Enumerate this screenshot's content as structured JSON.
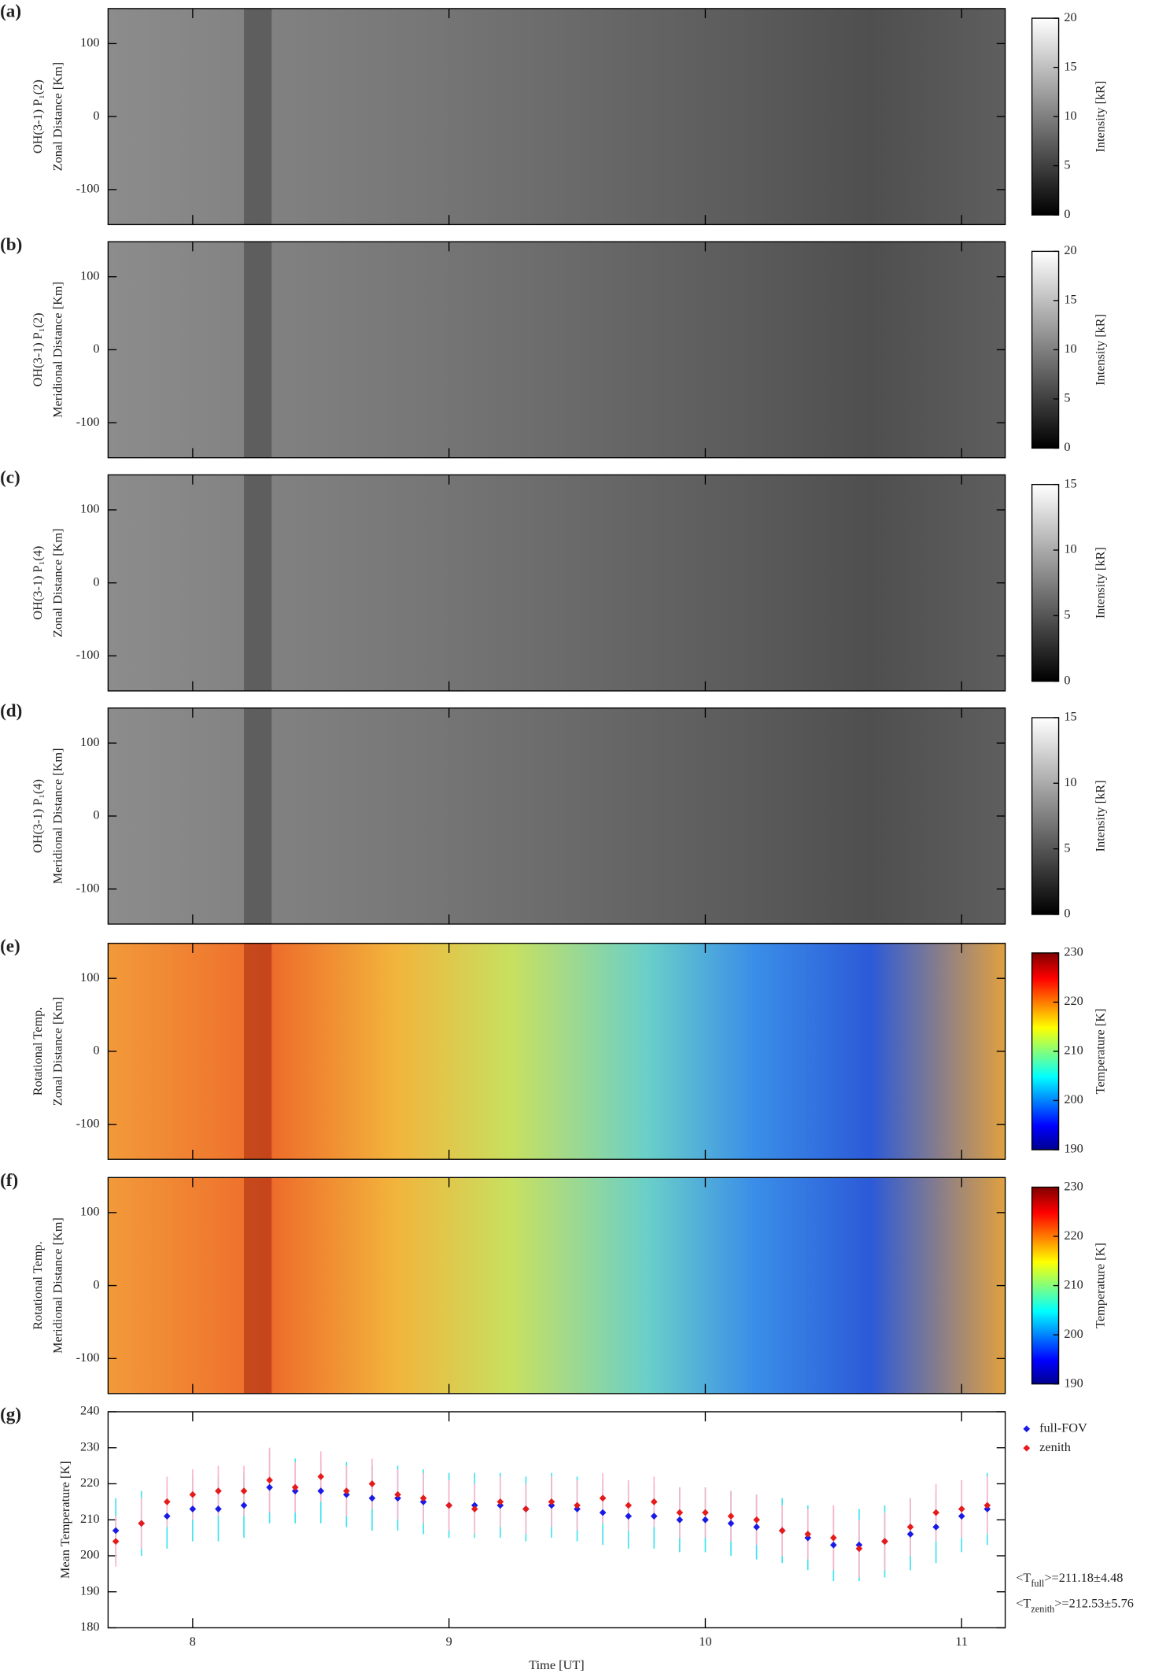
{
  "chart_data": [
    {
      "type": "keogram",
      "panel_label": "(a)",
      "ylabel": [
        "OH(3-1) P₁(2)",
        "Zonal Distance [Km]"
      ],
      "xlim": [
        7.67,
        11.17
      ],
      "xticks": [
        8,
        9,
        10,
        11
      ],
      "ylim": [
        -148,
        148
      ],
      "yticks": [
        -100,
        0,
        100
      ],
      "colormap": "gray",
      "colorbar": {
        "label": "Intensity [kR]",
        "lim": [
          0,
          20
        ],
        "ticks": [
          0,
          5,
          10,
          15,
          20
        ]
      }
    },
    {
      "type": "keogram",
      "panel_label": "(b)",
      "ylabel": [
        "OH(3-1) P₁(2)",
        "Meridional Distance [Km]"
      ],
      "xlim": [
        7.67,
        11.17
      ],
      "xticks": [
        8,
        9,
        10,
        11
      ],
      "ylim": [
        -148,
        148
      ],
      "yticks": [
        -100,
        0,
        100
      ],
      "colormap": "gray",
      "colorbar": {
        "label": "Intensity [kR]",
        "lim": [
          0,
          20
        ],
        "ticks": [
          0,
          5,
          10,
          15,
          20
        ]
      }
    },
    {
      "type": "keogram",
      "panel_label": "(c)",
      "ylabel": [
        "OH(3-1) P₁(4)",
        "Zonal Distance [Km]"
      ],
      "xlim": [
        7.67,
        11.17
      ],
      "xticks": [
        8,
        9,
        10,
        11
      ],
      "ylim": [
        -148,
        148
      ],
      "yticks": [
        -100,
        0,
        100
      ],
      "colormap": "gray",
      "colorbar": {
        "label": "Intensity [kR]",
        "lim": [
          0,
          15
        ],
        "ticks": [
          0,
          5,
          10,
          15
        ]
      }
    },
    {
      "type": "keogram",
      "panel_label": "(d)",
      "ylabel": [
        "OH(3-1) P₁(4)",
        "Meridional Distance [Km]"
      ],
      "xlim": [
        7.67,
        11.17
      ],
      "xticks": [
        8,
        9,
        10,
        11
      ],
      "ylim": [
        -148,
        148
      ],
      "yticks": [
        -100,
        0,
        100
      ],
      "colormap": "gray",
      "colorbar": {
        "label": "Intensity [kR]",
        "lim": [
          0,
          15
        ],
        "ticks": [
          0,
          5,
          10,
          15
        ]
      }
    },
    {
      "type": "keogram",
      "panel_label": "(e)",
      "ylabel": [
        "Rotational Temp.",
        "Zonal Distance [Km]"
      ],
      "xlim": [
        7.67,
        11.17
      ],
      "xticks": [
        8,
        9,
        10,
        11
      ],
      "ylim": [
        -148,
        148
      ],
      "yticks": [
        -100,
        0,
        100
      ],
      "colormap": "jet",
      "colorbar": {
        "label": "Temperature [K]",
        "lim": [
          190,
          230
        ],
        "ticks": [
          190,
          200,
          210,
          220,
          230
        ]
      }
    },
    {
      "type": "keogram",
      "panel_label": "(f)",
      "ylabel": [
        "Rotational Temp.",
        "Meridional Distance [Km]"
      ],
      "xlim": [
        7.67,
        11.17
      ],
      "xticks": [
        8,
        9,
        10,
        11
      ],
      "ylim": [
        -148,
        148
      ],
      "yticks": [
        -100,
        0,
        100
      ],
      "colormap": "jet",
      "colorbar": {
        "label": "Temperature [K]",
        "lim": [
          190,
          230
        ],
        "ticks": [
          190,
          200,
          210,
          220,
          230
        ]
      }
    },
    {
      "type": "scatter",
      "panel_label": "(g)",
      "ylabel": [
        "Mean Temperature [K]"
      ],
      "xlabel": "Time [UT]",
      "xlim": [
        7.67,
        11.17
      ],
      "xticks": [
        8,
        9,
        10,
        11
      ],
      "ylim": [
        180,
        240
      ],
      "yticks": [
        180,
        190,
        200,
        210,
        220,
        230,
        240
      ],
      "legend": "right",
      "x": [
        7.7,
        7.8,
        7.9,
        8.0,
        8.1,
        8.2,
        8.3,
        8.4,
        8.5,
        8.6,
        8.7,
        8.8,
        8.9,
        9.0,
        9.1,
        9.2,
        9.3,
        9.4,
        9.5,
        9.6,
        9.7,
        9.8,
        9.9,
        10.0,
        10.1,
        10.2,
        10.3,
        10.4,
        10.5,
        10.6,
        10.7,
        10.8,
        10.9,
        11.0,
        11.1
      ],
      "series": [
        {
          "name": "full-FOV",
          "color": "#1a1ae6",
          "error_color": "#3fe3f0",
          "values": [
            207,
            209,
            211,
            213,
            213,
            214,
            219,
            218,
            218,
            217,
            216,
            216,
            215,
            214,
            214,
            214,
            213,
            214,
            213,
            212,
            211,
            211,
            210,
            210,
            209,
            208,
            207,
            205,
            203,
            203,
            204,
            206,
            208,
            211,
            213
          ],
          "errors": [
            9,
            9,
            9,
            9,
            9,
            9,
            10,
            9,
            9,
            9,
            9,
            9,
            9,
            9,
            9,
            9,
            9,
            9,
            9,
            9,
            9,
            9,
            9,
            9,
            9,
            9,
            9,
            9,
            10,
            10,
            10,
            10,
            10,
            10,
            10
          ]
        },
        {
          "name": "zenith",
          "color": "#e61a1a",
          "error_color": "#ffb3c9",
          "values": [
            204,
            209,
            215,
            217,
            218,
            218,
            221,
            219,
            222,
            218,
            220,
            217,
            216,
            214,
            213,
            215,
            213,
            215,
            214,
            216,
            214,
            215,
            212,
            212,
            211,
            210,
            207,
            206,
            205,
            202,
            204,
            208,
            212,
            213,
            214
          ],
          "errors": [
            7,
            7,
            7,
            7,
            7,
            7,
            9,
            7,
            7,
            7,
            7,
            7,
            7,
            7,
            7,
            7,
            7,
            7,
            7,
            7,
            7,
            7,
            7,
            7,
            7,
            7,
            7,
            7,
            9,
            8,
            8,
            8,
            8,
            8,
            8
          ]
        }
      ],
      "annotations": [
        [
          "<T",
          "full",
          ">=211.18±4.48"
        ],
        [
          "<T",
          "zenith",
          ">=212.53±5.76"
        ]
      ]
    }
  ]
}
